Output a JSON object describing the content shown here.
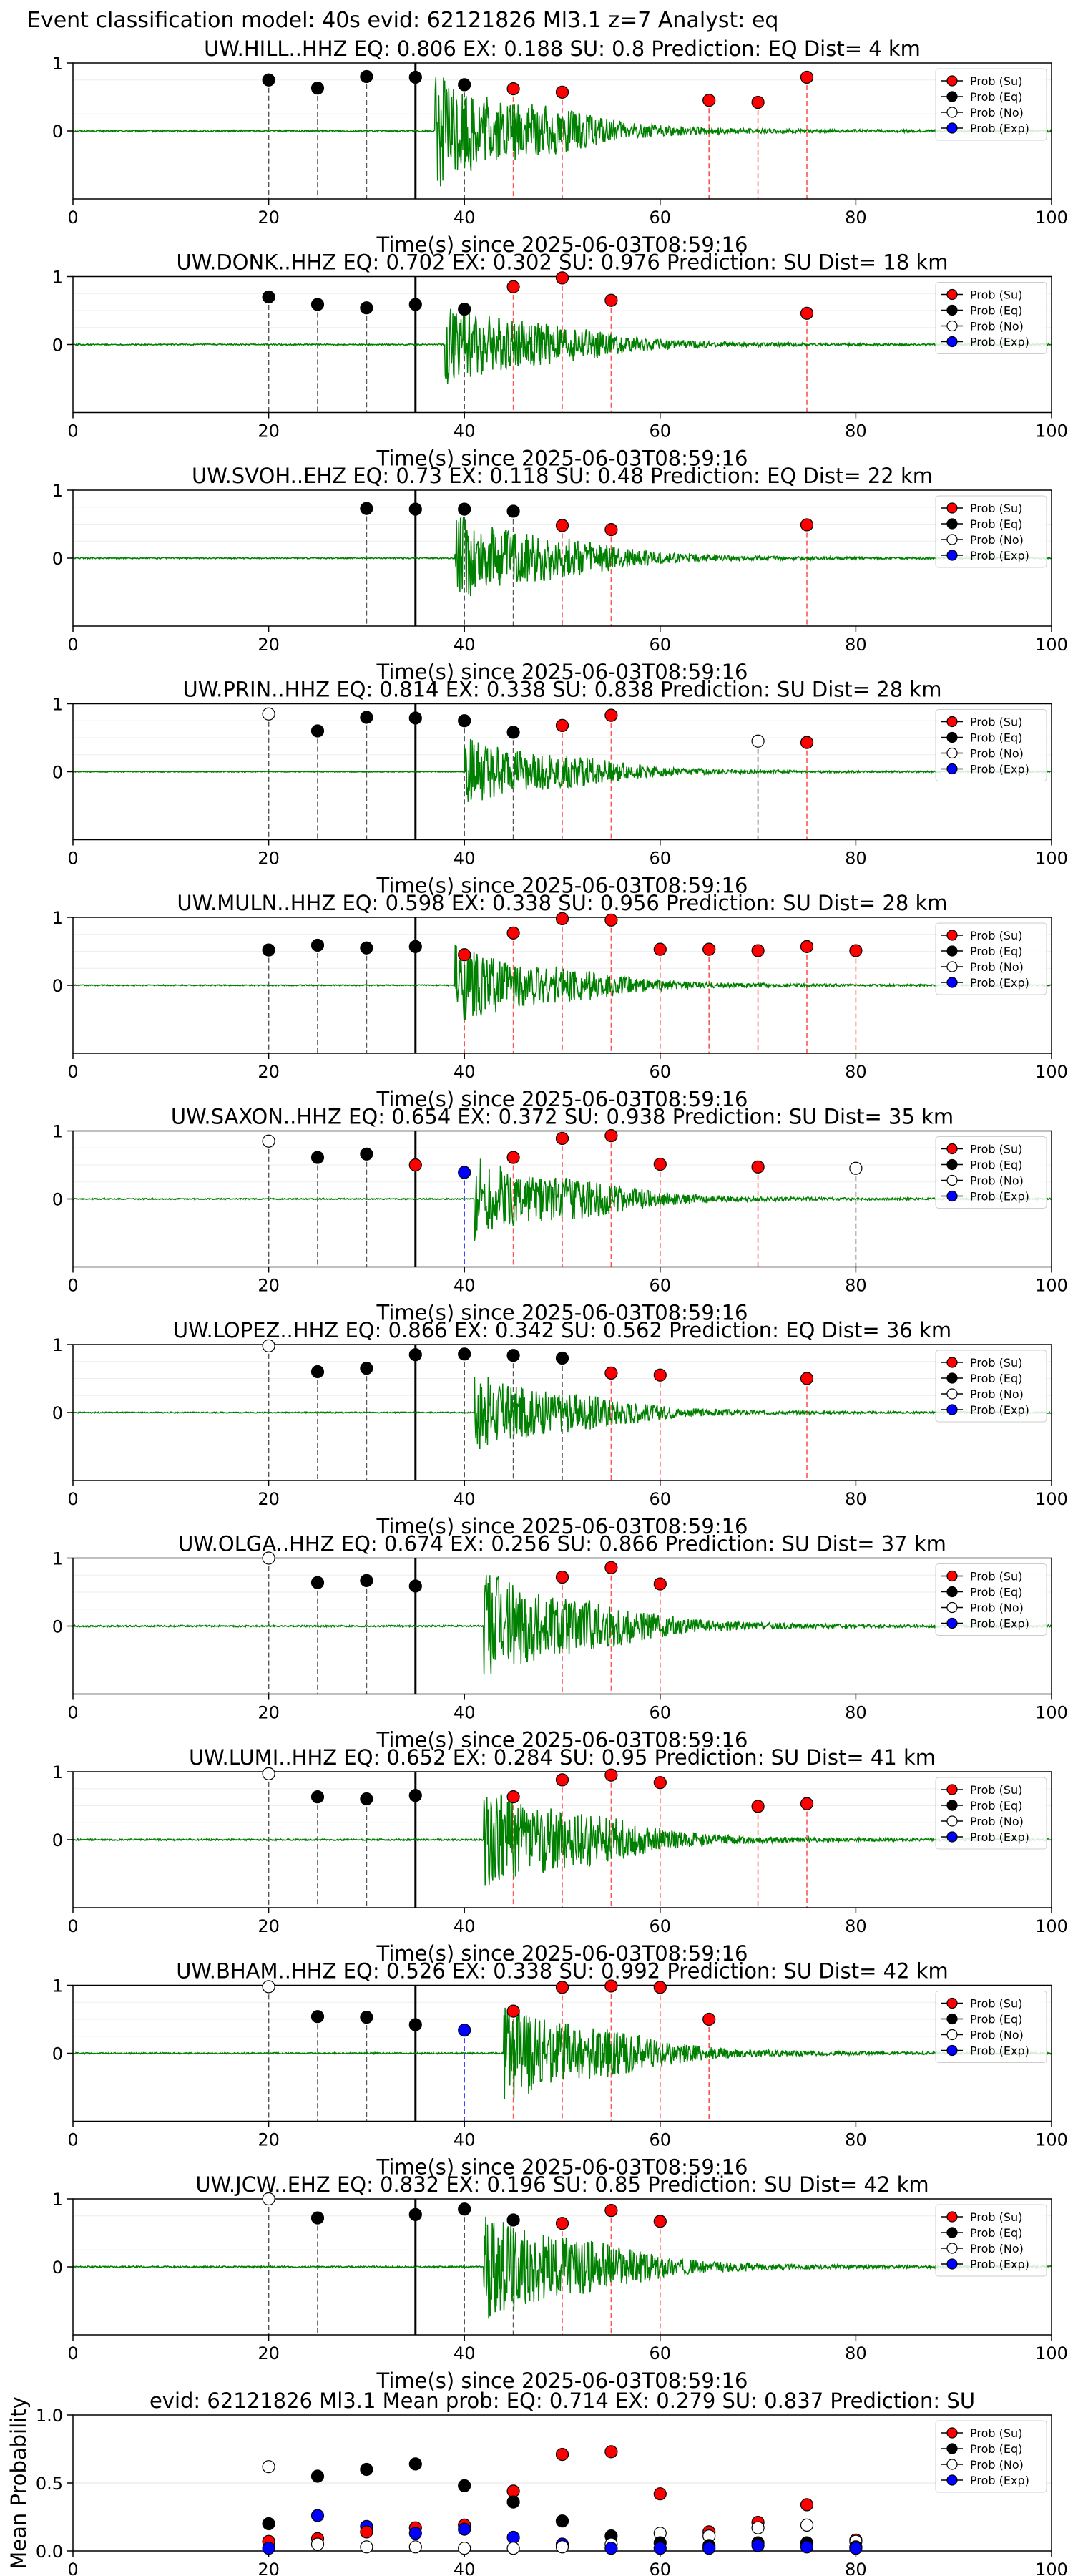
{
  "suptitle": "Event classification model: 40s evid: 62121826 Ml3.1 z=7 Analyst: eq",
  "legend": [
    "Prob (Su)",
    "Prob (Eq)",
    "Prob (No)",
    "Prob (Exp)"
  ],
  "colors": {
    "su": "#ff0000",
    "eq": "#000000",
    "no": "#ffffff",
    "exp": "#0000ff",
    "trace": "#008000"
  },
  "chart_data": [
    {
      "type": "scatter",
      "title": "UW.HILL..HHZ   EQ: 0.806  EX: 0.188  SU: 0.8   Prediction: EQ    Dist= 4 km",
      "xlabel": "Time(s) since 2025-06-03T08:59:16",
      "xlim": [
        0,
        100
      ],
      "ylim": [
        -1,
        1
      ],
      "xticks": [
        0,
        20,
        40,
        60,
        80,
        100
      ],
      "yticks": [
        1,
        0
      ],
      "arrival": 35,
      "signal_onset": 37,
      "amplitude": 1.0,
      "points": [
        {
          "x": 20,
          "y": 0.75,
          "cls": "eq"
        },
        {
          "x": 25,
          "y": 0.63,
          "cls": "eq"
        },
        {
          "x": 30,
          "y": 0.8,
          "cls": "eq"
        },
        {
          "x": 35,
          "y": 0.79,
          "cls": "eq"
        },
        {
          "x": 40,
          "y": 0.68,
          "cls": "eq"
        },
        {
          "x": 45,
          "y": 0.62,
          "cls": "su"
        },
        {
          "x": 50,
          "y": 0.57,
          "cls": "su"
        },
        {
          "x": 65,
          "y": 0.45,
          "cls": "su"
        },
        {
          "x": 70,
          "y": 0.42,
          "cls": "su"
        },
        {
          "x": 75,
          "y": 0.79,
          "cls": "su"
        }
      ]
    },
    {
      "type": "scatter",
      "title": "UW.DONK..HHZ   EQ: 0.702  EX: 0.302  SU: 0.976   Prediction: SU    Dist= 18 km",
      "xlabel": "Time(s) since 2025-06-03T08:59:16",
      "xlim": [
        0,
        100
      ],
      "ylim": [
        -1,
        1
      ],
      "xticks": [
        0,
        20,
        40,
        60,
        80,
        100
      ],
      "yticks": [
        1,
        0
      ],
      "arrival": 35,
      "signal_onset": 38,
      "amplitude": 0.8,
      "points": [
        {
          "x": 20,
          "y": 0.7,
          "cls": "eq"
        },
        {
          "x": 25,
          "y": 0.59,
          "cls": "eq"
        },
        {
          "x": 30,
          "y": 0.54,
          "cls": "eq"
        },
        {
          "x": 35,
          "y": 0.59,
          "cls": "eq"
        },
        {
          "x": 40,
          "y": 0.52,
          "cls": "eq"
        },
        {
          "x": 45,
          "y": 0.85,
          "cls": "su"
        },
        {
          "x": 50,
          "y": 0.98,
          "cls": "su"
        },
        {
          "x": 55,
          "y": 0.65,
          "cls": "su"
        },
        {
          "x": 75,
          "y": 0.46,
          "cls": "su"
        }
      ]
    },
    {
      "type": "scatter",
      "title": "UW.SVOH..EHZ   EQ: 0.73  EX: 0.118  SU: 0.48   Prediction: EQ    Dist= 22 km",
      "xlabel": "Time(s) since 2025-06-03T08:59:16",
      "xlim": [
        0,
        100
      ],
      "ylim": [
        -1,
        1
      ],
      "xticks": [
        0,
        20,
        40,
        60,
        80,
        100
      ],
      "yticks": [
        1,
        0
      ],
      "arrival": 35,
      "signal_onset": 39,
      "amplitude": 0.8,
      "points": [
        {
          "x": 30,
          "y": 0.73,
          "cls": "eq"
        },
        {
          "x": 35,
          "y": 0.72,
          "cls": "eq"
        },
        {
          "x": 40,
          "y": 0.72,
          "cls": "eq"
        },
        {
          "x": 45,
          "y": 0.69,
          "cls": "eq"
        },
        {
          "x": 50,
          "y": 0.48,
          "cls": "su"
        },
        {
          "x": 55,
          "y": 0.42,
          "cls": "su"
        },
        {
          "x": 75,
          "y": 0.49,
          "cls": "su"
        }
      ]
    },
    {
      "type": "scatter",
      "title": "UW.PRIN..HHZ   EQ: 0.814  EX: 0.338  SU: 0.838   Prediction: SU    Dist= 28 km",
      "xlabel": "Time(s) since 2025-06-03T08:59:16",
      "xlim": [
        0,
        100
      ],
      "ylim": [
        -1,
        1
      ],
      "xticks": [
        0,
        20,
        40,
        60,
        80,
        100
      ],
      "yticks": [
        1,
        0
      ],
      "arrival": 35,
      "signal_onset": 40,
      "amplitude": 0.6,
      "points": [
        {
          "x": 20,
          "y": 0.85,
          "cls": "no"
        },
        {
          "x": 25,
          "y": 0.6,
          "cls": "eq"
        },
        {
          "x": 30,
          "y": 0.8,
          "cls": "eq"
        },
        {
          "x": 35,
          "y": 0.79,
          "cls": "eq"
        },
        {
          "x": 40,
          "y": 0.75,
          "cls": "eq"
        },
        {
          "x": 45,
          "y": 0.58,
          "cls": "eq"
        },
        {
          "x": 50,
          "y": 0.68,
          "cls": "su"
        },
        {
          "x": 55,
          "y": 0.83,
          "cls": "su"
        },
        {
          "x": 70,
          "y": 0.45,
          "cls": "no"
        },
        {
          "x": 75,
          "y": 0.43,
          "cls": "su"
        }
      ]
    },
    {
      "type": "scatter",
      "title": "UW.MULN..HHZ   EQ: 0.598  EX: 0.338  SU: 0.956   Prediction: SU    Dist= 28 km",
      "xlabel": "Time(s) since 2025-06-03T08:59:16",
      "xlim": [
        0,
        100
      ],
      "ylim": [
        -1,
        1
      ],
      "xticks": [
        0,
        20,
        40,
        60,
        80,
        100
      ],
      "yticks": [
        1,
        0
      ],
      "arrival": 35,
      "signal_onset": 39,
      "amplitude": 0.7,
      "points": [
        {
          "x": 20,
          "y": 0.52,
          "cls": "eq"
        },
        {
          "x": 25,
          "y": 0.59,
          "cls": "eq"
        },
        {
          "x": 30,
          "y": 0.55,
          "cls": "eq"
        },
        {
          "x": 35,
          "y": 0.57,
          "cls": "eq"
        },
        {
          "x": 40,
          "y": 0.45,
          "cls": "su"
        },
        {
          "x": 45,
          "y": 0.77,
          "cls": "su"
        },
        {
          "x": 50,
          "y": 0.98,
          "cls": "su"
        },
        {
          "x": 55,
          "y": 0.96,
          "cls": "su"
        },
        {
          "x": 60,
          "y": 0.53,
          "cls": "su"
        },
        {
          "x": 65,
          "y": 0.53,
          "cls": "su"
        },
        {
          "x": 70,
          "y": 0.51,
          "cls": "su"
        },
        {
          "x": 75,
          "y": 0.57,
          "cls": "su"
        },
        {
          "x": 80,
          "y": 0.51,
          "cls": "su"
        }
      ]
    },
    {
      "type": "scatter",
      "title": "UW.SAXON..HHZ   EQ: 0.654  EX: 0.372  SU: 0.938   Prediction: SU    Dist= 35 km",
      "xlabel": "Time(s) since 2025-06-03T08:59:16",
      "xlim": [
        0,
        100
      ],
      "ylim": [
        -1,
        1
      ],
      "xticks": [
        0,
        20,
        40,
        60,
        80,
        100
      ],
      "yticks": [
        1,
        0
      ],
      "arrival": 35,
      "signal_onset": 41,
      "amplitude": 0.75,
      "points": [
        {
          "x": 20,
          "y": 0.85,
          "cls": "no"
        },
        {
          "x": 25,
          "y": 0.61,
          "cls": "eq"
        },
        {
          "x": 30,
          "y": 0.66,
          "cls": "eq"
        },
        {
          "x": 35,
          "y": 0.5,
          "cls": "su"
        },
        {
          "x": 40,
          "y": 0.39,
          "cls": "exp"
        },
        {
          "x": 45,
          "y": 0.61,
          "cls": "su"
        },
        {
          "x": 50,
          "y": 0.89,
          "cls": "su"
        },
        {
          "x": 55,
          "y": 0.93,
          "cls": "su"
        },
        {
          "x": 60,
          "y": 0.51,
          "cls": "su"
        },
        {
          "x": 70,
          "y": 0.47,
          "cls": "su"
        },
        {
          "x": 80,
          "y": 0.45,
          "cls": "no"
        }
      ]
    },
    {
      "type": "scatter",
      "title": "UW.LOPEZ..HHZ   EQ: 0.866  EX: 0.342  SU: 0.562   Prediction: EQ    Dist= 36 km",
      "xlabel": "Time(s) since 2025-06-03T08:59:16",
      "xlim": [
        0,
        100
      ],
      "ylim": [
        -1,
        1
      ],
      "xticks": [
        0,
        20,
        40,
        60,
        80,
        100
      ],
      "yticks": [
        1,
        0
      ],
      "arrival": 35,
      "signal_onset": 41,
      "amplitude": 0.7,
      "points": [
        {
          "x": 20,
          "y": 0.98,
          "cls": "no"
        },
        {
          "x": 25,
          "y": 0.6,
          "cls": "eq"
        },
        {
          "x": 30,
          "y": 0.65,
          "cls": "eq"
        },
        {
          "x": 35,
          "y": 0.85,
          "cls": "eq"
        },
        {
          "x": 40,
          "y": 0.86,
          "cls": "eq"
        },
        {
          "x": 45,
          "y": 0.84,
          "cls": "eq"
        },
        {
          "x": 50,
          "y": 0.8,
          "cls": "eq"
        },
        {
          "x": 55,
          "y": 0.58,
          "cls": "su"
        },
        {
          "x": 60,
          "y": 0.55,
          "cls": "su"
        },
        {
          "x": 75,
          "y": 0.5,
          "cls": "su"
        }
      ]
    },
    {
      "type": "scatter",
      "title": "UW.OLGA..HHZ   EQ: 0.674  EX: 0.256  SU: 0.866   Prediction: SU    Dist= 37 km",
      "xlabel": "Time(s) since 2025-06-03T08:59:16",
      "xlim": [
        0,
        100
      ],
      "ylim": [
        -1,
        1
      ],
      "xticks": [
        0,
        20,
        40,
        60,
        80,
        100
      ],
      "yticks": [
        1,
        0
      ],
      "arrival": 35,
      "signal_onset": 42,
      "amplitude": 1.0,
      "points": [
        {
          "x": 20,
          "y": 1.0,
          "cls": "no"
        },
        {
          "x": 25,
          "y": 0.64,
          "cls": "eq"
        },
        {
          "x": 30,
          "y": 0.67,
          "cls": "eq"
        },
        {
          "x": 35,
          "y": 0.59,
          "cls": "eq"
        },
        {
          "x": 50,
          "y": 0.72,
          "cls": "su"
        },
        {
          "x": 55,
          "y": 0.86,
          "cls": "su"
        },
        {
          "x": 60,
          "y": 0.62,
          "cls": "su"
        }
      ]
    },
    {
      "type": "scatter",
      "title": "UW.LUMI..HHZ   EQ: 0.652  EX: 0.284  SU: 0.95   Prediction: SU    Dist= 41 km",
      "xlabel": "Time(s) since 2025-06-03T08:59:16",
      "xlim": [
        0,
        100
      ],
      "ylim": [
        -1,
        1
      ],
      "xticks": [
        0,
        20,
        40,
        60,
        80,
        100
      ],
      "yticks": [
        1,
        0
      ],
      "arrival": 35,
      "signal_onset": 42,
      "amplitude": 1.0,
      "points": [
        {
          "x": 20,
          "y": 0.97,
          "cls": "no"
        },
        {
          "x": 25,
          "y": 0.63,
          "cls": "eq"
        },
        {
          "x": 30,
          "y": 0.6,
          "cls": "eq"
        },
        {
          "x": 35,
          "y": 0.65,
          "cls": "eq"
        },
        {
          "x": 45,
          "y": 0.63,
          "cls": "su"
        },
        {
          "x": 50,
          "y": 0.88,
          "cls": "su"
        },
        {
          "x": 55,
          "y": 0.95,
          "cls": "su"
        },
        {
          "x": 60,
          "y": 0.84,
          "cls": "su"
        },
        {
          "x": 70,
          "y": 0.49,
          "cls": "su"
        },
        {
          "x": 75,
          "y": 0.53,
          "cls": "su"
        }
      ]
    },
    {
      "type": "scatter",
      "title": "UW.BHAM..HHZ   EQ: 0.526  EX: 0.338  SU: 0.992   Prediction: SU    Dist= 42 km",
      "xlabel": "Time(s) since 2025-06-03T08:59:16",
      "xlim": [
        0,
        100
      ],
      "ylim": [
        -1,
        1
      ],
      "xticks": [
        0,
        20,
        40,
        60,
        80,
        100
      ],
      "yticks": [
        1,
        0
      ],
      "arrival": 35,
      "signal_onset": 44,
      "amplitude": 0.9,
      "points": [
        {
          "x": 20,
          "y": 0.98,
          "cls": "no"
        },
        {
          "x": 25,
          "y": 0.54,
          "cls": "eq"
        },
        {
          "x": 30,
          "y": 0.53,
          "cls": "eq"
        },
        {
          "x": 35,
          "y": 0.42,
          "cls": "eq"
        },
        {
          "x": 40,
          "y": 0.34,
          "cls": "exp"
        },
        {
          "x": 45,
          "y": 0.62,
          "cls": "su"
        },
        {
          "x": 50,
          "y": 0.97,
          "cls": "su"
        },
        {
          "x": 55,
          "y": 0.99,
          "cls": "su"
        },
        {
          "x": 60,
          "y": 0.97,
          "cls": "su"
        },
        {
          "x": 65,
          "y": 0.5,
          "cls": "su"
        }
      ]
    },
    {
      "type": "scatter",
      "title": "UW.JCW..EHZ   EQ: 0.832  EX: 0.196  SU: 0.85   Prediction: SU    Dist= 42 km",
      "xlabel": "Time(s) since 2025-06-03T08:59:16",
      "xlim": [
        0,
        100
      ],
      "ylim": [
        -1,
        1
      ],
      "xticks": [
        0,
        20,
        40,
        60,
        80,
        100
      ],
      "yticks": [
        1,
        0
      ],
      "arrival": 35,
      "signal_onset": 42,
      "amplitude": 1.0,
      "points": [
        {
          "x": 20,
          "y": 1.0,
          "cls": "no"
        },
        {
          "x": 25,
          "y": 0.72,
          "cls": "eq"
        },
        {
          "x": 35,
          "y": 0.77,
          "cls": "eq"
        },
        {
          "x": 40,
          "y": 0.85,
          "cls": "eq"
        },
        {
          "x": 45,
          "y": 0.69,
          "cls": "eq"
        },
        {
          "x": 50,
          "y": 0.64,
          "cls": "su"
        },
        {
          "x": 55,
          "y": 0.83,
          "cls": "su"
        },
        {
          "x": 60,
          "y": 0.67,
          "cls": "su"
        }
      ]
    },
    {
      "type": "scatter",
      "title": "evid: 62121826  Ml3.1    Mean prob:   EQ: 0.714  EX: 0.279  SU: 0.837   Prediction: SU",
      "xlabel": "",
      "ylabel": "Mean Probability",
      "xlim": [
        0,
        100
      ],
      "ylim": [
        0,
        1
      ],
      "xticks": [
        0,
        20,
        40,
        60,
        80,
        100
      ],
      "yticks": [
        1.0,
        0.5,
        0.0
      ],
      "points": [
        {
          "x": 20,
          "y": 0.62,
          "cls": "no"
        },
        {
          "x": 20,
          "y": 0.2,
          "cls": "eq"
        },
        {
          "x": 20,
          "y": 0.07,
          "cls": "su"
        },
        {
          "x": 20,
          "y": 0.02,
          "cls": "exp"
        },
        {
          "x": 25,
          "y": 0.55,
          "cls": "eq"
        },
        {
          "x": 25,
          "y": 0.26,
          "cls": "exp"
        },
        {
          "x": 25,
          "y": 0.09,
          "cls": "su"
        },
        {
          "x": 25,
          "y": 0.05,
          "cls": "no"
        },
        {
          "x": 30,
          "y": 0.6,
          "cls": "eq"
        },
        {
          "x": 30,
          "y": 0.18,
          "cls": "exp"
        },
        {
          "x": 30,
          "y": 0.14,
          "cls": "su"
        },
        {
          "x": 30,
          "y": 0.03,
          "cls": "no"
        },
        {
          "x": 35,
          "y": 0.64,
          "cls": "eq"
        },
        {
          "x": 35,
          "y": 0.17,
          "cls": "su"
        },
        {
          "x": 35,
          "y": 0.13,
          "cls": "exp"
        },
        {
          "x": 35,
          "y": 0.03,
          "cls": "no"
        },
        {
          "x": 40,
          "y": 0.48,
          "cls": "eq"
        },
        {
          "x": 40,
          "y": 0.19,
          "cls": "su"
        },
        {
          "x": 40,
          "y": 0.16,
          "cls": "exp"
        },
        {
          "x": 40,
          "y": 0.02,
          "cls": "no"
        },
        {
          "x": 45,
          "y": 0.44,
          "cls": "su"
        },
        {
          "x": 45,
          "y": 0.36,
          "cls": "eq"
        },
        {
          "x": 45,
          "y": 0.1,
          "cls": "exp"
        },
        {
          "x": 45,
          "y": 0.02,
          "cls": "no"
        },
        {
          "x": 50,
          "y": 0.71,
          "cls": "su"
        },
        {
          "x": 50,
          "y": 0.22,
          "cls": "eq"
        },
        {
          "x": 50,
          "y": 0.05,
          "cls": "exp"
        },
        {
          "x": 50,
          "y": 0.03,
          "cls": "no"
        },
        {
          "x": 55,
          "y": 0.73,
          "cls": "su"
        },
        {
          "x": 55,
          "y": 0.11,
          "cls": "eq"
        },
        {
          "x": 55,
          "y": 0.05,
          "cls": "no"
        },
        {
          "x": 55,
          "y": 0.02,
          "cls": "exp"
        },
        {
          "x": 60,
          "y": 0.42,
          "cls": "su"
        },
        {
          "x": 60,
          "y": 0.13,
          "cls": "no"
        },
        {
          "x": 60,
          "y": 0.06,
          "cls": "eq"
        },
        {
          "x": 60,
          "y": 0.02,
          "cls": "exp"
        },
        {
          "x": 65,
          "y": 0.14,
          "cls": "su"
        },
        {
          "x": 65,
          "y": 0.11,
          "cls": "no"
        },
        {
          "x": 65,
          "y": 0.04,
          "cls": "eq"
        },
        {
          "x": 65,
          "y": 0.02,
          "cls": "exp"
        },
        {
          "x": 70,
          "y": 0.21,
          "cls": "su"
        },
        {
          "x": 70,
          "y": 0.17,
          "cls": "no"
        },
        {
          "x": 70,
          "y": 0.06,
          "cls": "eq"
        },
        {
          "x": 70,
          "y": 0.04,
          "cls": "exp"
        },
        {
          "x": 75,
          "y": 0.34,
          "cls": "su"
        },
        {
          "x": 75,
          "y": 0.19,
          "cls": "no"
        },
        {
          "x": 75,
          "y": 0.06,
          "cls": "eq"
        },
        {
          "x": 75,
          "y": 0.03,
          "cls": "exp"
        },
        {
          "x": 80,
          "y": 0.08,
          "cls": "su"
        },
        {
          "x": 80,
          "y": 0.07,
          "cls": "no"
        },
        {
          "x": 80,
          "y": 0.03,
          "cls": "eq"
        },
        {
          "x": 80,
          "y": 0.02,
          "cls": "exp"
        }
      ]
    }
  ]
}
